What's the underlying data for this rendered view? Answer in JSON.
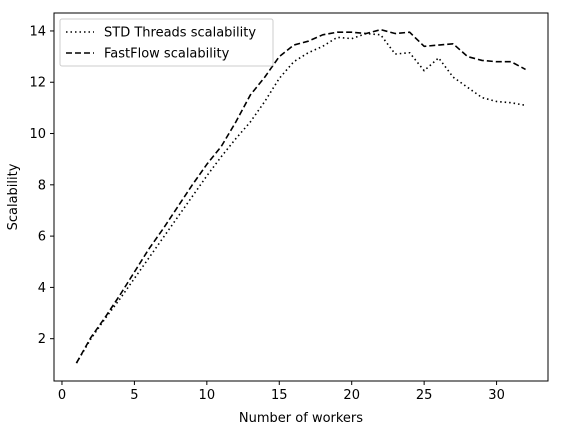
{
  "chart_data": {
    "type": "line",
    "title": "",
    "xlabel": "Number of workers",
    "ylabel": "Scalability",
    "xlim": [
      -0.55,
      33.55
    ],
    "ylim": [
      0.35,
      14.7
    ],
    "x_ticks": [
      0,
      5,
      10,
      15,
      20,
      25,
      30
    ],
    "y_ticks": [
      2,
      4,
      6,
      8,
      10,
      12,
      14
    ],
    "grid": false,
    "legend_position": "top-left",
    "x": [
      1,
      2,
      3,
      4,
      5,
      6,
      7,
      8,
      9,
      10,
      11,
      12,
      13,
      14,
      15,
      16,
      17,
      18,
      19,
      20,
      21,
      22,
      23,
      24,
      25,
      26,
      27,
      28,
      29,
      30,
      31,
      32
    ],
    "series": [
      {
        "name": "STD Threads scalability",
        "line_style": "dotted",
        "color": "#000000",
        "values": [
          1.05,
          2.0,
          2.8,
          3.55,
          4.35,
          5.15,
          5.95,
          6.75,
          7.55,
          8.35,
          9.1,
          9.8,
          10.45,
          11.25,
          12.15,
          12.8,
          13.15,
          13.4,
          13.75,
          13.7,
          13.9,
          13.85,
          13.1,
          13.15,
          12.45,
          12.95,
          12.2,
          11.8,
          11.4,
          11.25,
          11.2,
          11.1
        ]
      },
      {
        "name": "FastFlow scalability",
        "line_style": "dashed",
        "color": "#000000",
        "values": [
          1.05,
          2.05,
          2.85,
          3.7,
          4.6,
          5.5,
          6.3,
          7.15,
          8.0,
          8.8,
          9.5,
          10.45,
          11.5,
          12.2,
          13.0,
          13.45,
          13.6,
          13.85,
          13.95,
          13.95,
          13.9,
          14.05,
          13.9,
          13.95,
          13.4,
          13.45,
          13.5,
          13.0,
          12.85,
          12.8,
          12.8,
          12.5
        ]
      }
    ]
  }
}
